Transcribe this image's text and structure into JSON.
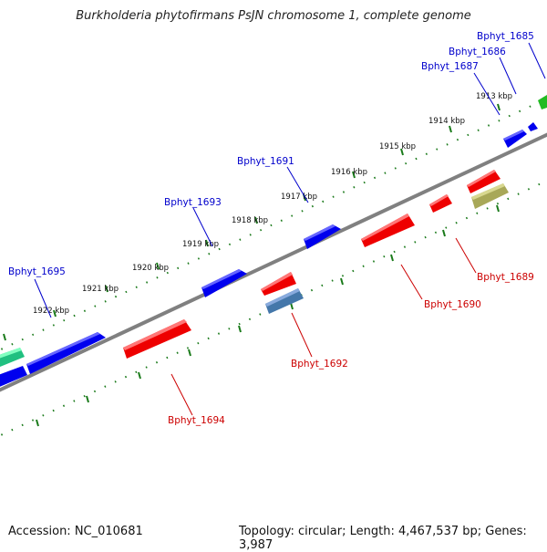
{
  "title": "Burkholderia phytofirmans PsJN chromosome 1, complete genome",
  "footer": {
    "accession": "Accession: NC_010681",
    "topology": "Topology: circular; Length: 4,467,537 bp; Genes: 3,987"
  },
  "colors": {
    "forward_gene": "#0000ee",
    "reverse_gene": "#ee0000",
    "forward_label": "#0000cc",
    "reverse_label": "#cc0000",
    "backbone": "#808080",
    "ticks": "#1a7a1a"
  },
  "kbp_labels": [
    "1913 kbp",
    "1914 kbp",
    "1915 kbp",
    "1916 kbp",
    "1917 kbp",
    "1918 kbp",
    "1919 kbp",
    "1920 kbp",
    "1921 kbp",
    "1922 kbp"
  ],
  "genes_forward": [
    "Bphyt_1685",
    "Bphyt_1686",
    "Bphyt_1687",
    "Bphyt_1691",
    "Bphyt_1693",
    "Bphyt_1695"
  ],
  "genes_reverse": [
    "Bphyt_1689",
    "Bphyt_1690",
    "Bphyt_1692",
    "Bphyt_1694"
  ]
}
